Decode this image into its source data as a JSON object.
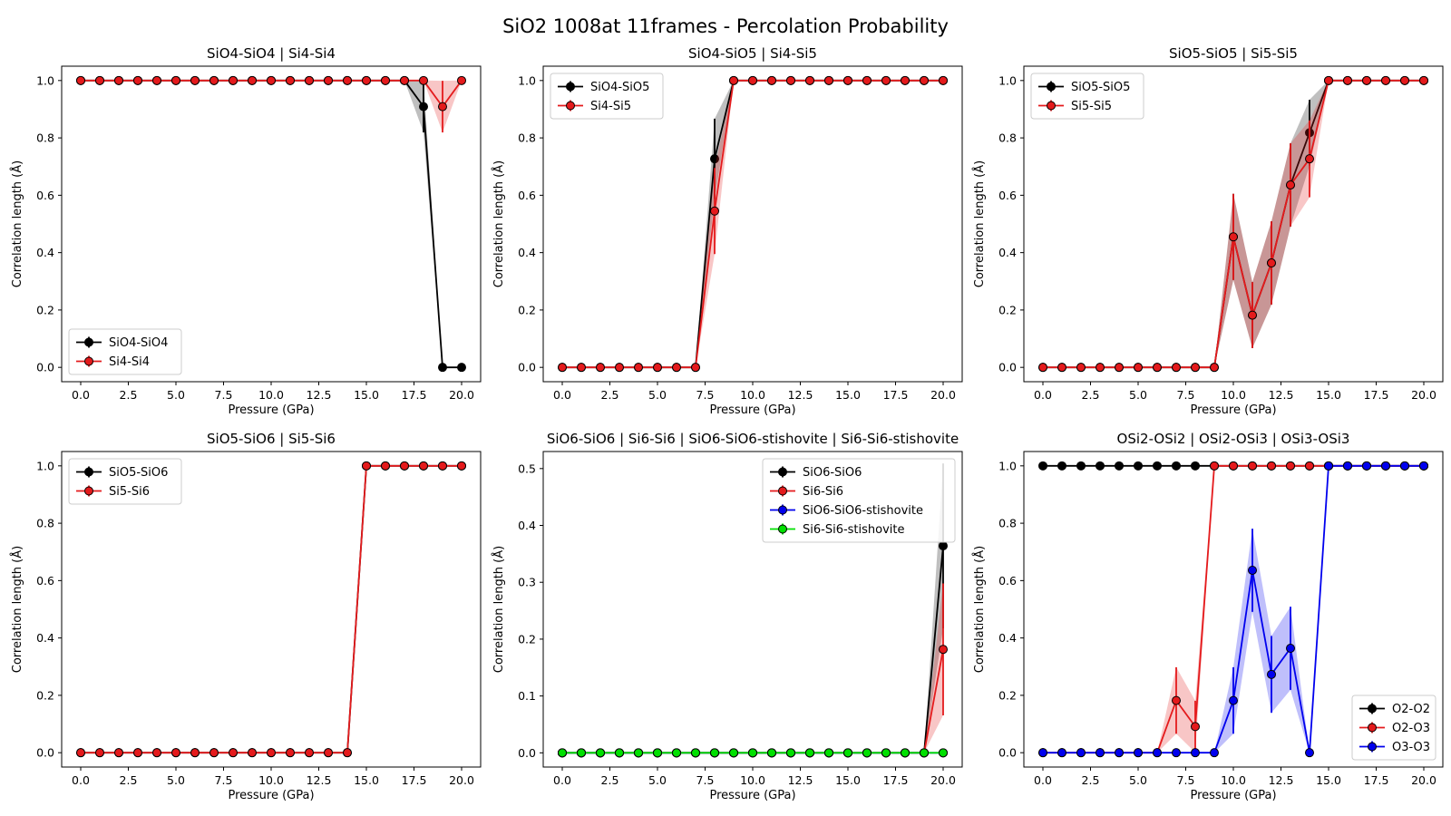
{
  "figure": {
    "title": "SiO2 1008at 11frames - Percolation Probability"
  },
  "colors": {
    "black": "#000000",
    "red": "#e41a1c",
    "blue": "#0000ee",
    "green": "#00e000"
  },
  "chart_data": [
    {
      "type": "line",
      "title": "SiO4-SiO4 | Si4-Si4",
      "xlabel": "Pressure (GPa)",
      "ylabel": "Correlation length (Å)",
      "xlim": [
        -1,
        21
      ],
      "ylim": [
        -0.05,
        1.05
      ],
      "xticks": [
        "0.0",
        "2.5",
        "5.0",
        "7.5",
        "10.0",
        "12.5",
        "15.0",
        "17.5",
        "20.0"
      ],
      "yticks": [
        "0.0",
        "0.2",
        "0.4",
        "0.6",
        "0.8",
        "1.0"
      ],
      "legend": "lower-left",
      "x": [
        0,
        1,
        2,
        3,
        4,
        5,
        6,
        7,
        8,
        9,
        10,
        11,
        12,
        13,
        14,
        15,
        16,
        17,
        18,
        19,
        20
      ],
      "series": [
        {
          "name": "SiO4-SiO4",
          "color": "black",
          "values": [
            1,
            1,
            1,
            1,
            1,
            1,
            1,
            1,
            1,
            1,
            1,
            1,
            1,
            1,
            1,
            1,
            1,
            1,
            0.909,
            0,
            0
          ],
          "err": [
            0,
            0,
            0,
            0,
            0,
            0,
            0,
            0,
            0,
            0,
            0,
            0,
            0,
            0,
            0,
            0,
            0,
            0,
            0.09,
            0,
            0
          ]
        },
        {
          "name": "Si4-Si4",
          "color": "red",
          "values": [
            1,
            1,
            1,
            1,
            1,
            1,
            1,
            1,
            1,
            1,
            1,
            1,
            1,
            1,
            1,
            1,
            1,
            1,
            1,
            0.909,
            1
          ],
          "err": [
            0,
            0,
            0,
            0,
            0,
            0,
            0,
            0,
            0,
            0,
            0,
            0,
            0,
            0,
            0,
            0,
            0,
            0,
            0,
            0.09,
            0
          ]
        }
      ]
    },
    {
      "type": "line",
      "title": "SiO4-SiO5 | Si4-Si5",
      "xlabel": "Pressure (GPa)",
      "ylabel": "Correlation length (Å)",
      "xlim": [
        -1,
        21
      ],
      "ylim": [
        -0.05,
        1.05
      ],
      "xticks": [
        "0.0",
        "2.5",
        "5.0",
        "7.5",
        "10.0",
        "12.5",
        "15.0",
        "17.5",
        "20.0"
      ],
      "yticks": [
        "0.0",
        "0.2",
        "0.4",
        "0.6",
        "0.8",
        "1.0"
      ],
      "legend": "upper-left",
      "x": [
        0,
        1,
        2,
        3,
        4,
        5,
        6,
        7,
        8,
        9,
        10,
        11,
        12,
        13,
        14,
        15,
        16,
        17,
        18,
        19,
        20
      ],
      "series": [
        {
          "name": "SiO4-SiO5",
          "color": "black",
          "values": [
            0,
            0,
            0,
            0,
            0,
            0,
            0,
            0,
            0.727,
            1,
            1,
            1,
            1,
            1,
            1,
            1,
            1,
            1,
            1,
            1,
            1
          ],
          "err": [
            0,
            0,
            0,
            0,
            0,
            0,
            0,
            0,
            0.14,
            0,
            0,
            0,
            0,
            0,
            0,
            0,
            0,
            0,
            0,
            0,
            0
          ]
        },
        {
          "name": "Si4-Si5",
          "color": "red",
          "values": [
            0,
            0,
            0,
            0,
            0,
            0,
            0,
            0,
            0.545,
            1,
            1,
            1,
            1,
            1,
            1,
            1,
            1,
            1,
            1,
            1,
            1
          ],
          "err": [
            0,
            0,
            0,
            0,
            0,
            0,
            0,
            0,
            0.15,
            0,
            0,
            0,
            0,
            0,
            0,
            0,
            0,
            0,
            0,
            0,
            0
          ]
        }
      ]
    },
    {
      "type": "line",
      "title": "SiO5-SiO5 | Si5-Si5",
      "xlabel": "Pressure (GPa)",
      "ylabel": "Correlation length (Å)",
      "xlim": [
        -1,
        21
      ],
      "ylim": [
        -0.05,
        1.05
      ],
      "xticks": [
        "0.0",
        "2.5",
        "5.0",
        "7.5",
        "10.0",
        "12.5",
        "15.0",
        "17.5",
        "20.0"
      ],
      "yticks": [
        "0.0",
        "0.2",
        "0.4",
        "0.6",
        "0.8",
        "1.0"
      ],
      "legend": "upper-left",
      "x": [
        0,
        1,
        2,
        3,
        4,
        5,
        6,
        7,
        8,
        9,
        10,
        11,
        12,
        13,
        14,
        15,
        16,
        17,
        18,
        19,
        20
      ],
      "series": [
        {
          "name": "SiO5-SiO5",
          "color": "black",
          "values": [
            0,
            0,
            0,
            0,
            0,
            0,
            0,
            0,
            0,
            0,
            0.455,
            0.182,
            0.364,
            0.636,
            0.818,
            1,
            1,
            1,
            1,
            1,
            1
          ],
          "err": [
            0,
            0,
            0,
            0,
            0,
            0,
            0,
            0,
            0,
            0,
            0.15,
            0.115,
            0.145,
            0.145,
            0.115,
            0,
            0,
            0,
            0,
            0,
            0
          ]
        },
        {
          "name": "Si5-Si5",
          "color": "red",
          "values": [
            0,
            0,
            0,
            0,
            0,
            0,
            0,
            0,
            0,
            0,
            0.455,
            0.182,
            0.364,
            0.636,
            0.727,
            1,
            1,
            1,
            1,
            1,
            1
          ],
          "err": [
            0,
            0,
            0,
            0,
            0,
            0,
            0,
            0,
            0,
            0,
            0.15,
            0.115,
            0.145,
            0.145,
            0.134,
            0,
            0,
            0,
            0,
            0,
            0
          ]
        }
      ]
    },
    {
      "type": "line",
      "title": "SiO5-SiO6 | Si5-Si6",
      "xlabel": "Pressure (GPa)",
      "ylabel": "Correlation length (Å)",
      "xlim": [
        -1,
        21
      ],
      "ylim": [
        -0.05,
        1.05
      ],
      "xticks": [
        "0.0",
        "2.5",
        "5.0",
        "7.5",
        "10.0",
        "12.5",
        "15.0",
        "17.5",
        "20.0"
      ],
      "yticks": [
        "0.0",
        "0.2",
        "0.4",
        "0.6",
        "0.8",
        "1.0"
      ],
      "legend": "upper-left",
      "x": [
        0,
        1,
        2,
        3,
        4,
        5,
        6,
        7,
        8,
        9,
        10,
        11,
        12,
        13,
        14,
        15,
        16,
        17,
        18,
        19,
        20
      ],
      "series": [
        {
          "name": "SiO5-SiO6",
          "color": "black",
          "values": [
            0,
            0,
            0,
            0,
            0,
            0,
            0,
            0,
            0,
            0,
            0,
            0,
            0,
            0,
            0,
            1,
            1,
            1,
            1,
            1,
            1
          ],
          "err": [
            0,
            0,
            0,
            0,
            0,
            0,
            0,
            0,
            0,
            0,
            0,
            0,
            0,
            0,
            0,
            0,
            0,
            0,
            0,
            0,
            0
          ]
        },
        {
          "name": "Si5-Si6",
          "color": "red",
          "values": [
            0,
            0,
            0,
            0,
            0,
            0,
            0,
            0,
            0,
            0,
            0,
            0,
            0,
            0,
            0,
            1,
            1,
            1,
            1,
            1,
            1
          ],
          "err": [
            0,
            0,
            0,
            0,
            0,
            0,
            0,
            0,
            0,
            0,
            0,
            0,
            0,
            0,
            0,
            0,
            0,
            0,
            0,
            0,
            0
          ]
        }
      ]
    },
    {
      "type": "line",
      "title": "SiO6-SiO6 | Si6-Si6 | SiO6-SiO6-stishovite | Si6-Si6-stishovite",
      "xlabel": "Pressure (GPa)",
      "ylabel": "Correlation length (Å)",
      "xlim": [
        -1,
        21
      ],
      "ylim": [
        -0.025,
        0.53
      ],
      "xticks": [
        "0.0",
        "2.5",
        "5.0",
        "7.5",
        "10.0",
        "12.5",
        "15.0",
        "17.5",
        "20.0"
      ],
      "yticks": [
        "0.0",
        "0.1",
        "0.2",
        "0.3",
        "0.4",
        "0.5"
      ],
      "legend": "upper-right",
      "x": [
        0,
        1,
        2,
        3,
        4,
        5,
        6,
        7,
        8,
        9,
        10,
        11,
        12,
        13,
        14,
        15,
        16,
        17,
        18,
        19,
        20
      ],
      "series": [
        {
          "name": "SiO6-SiO6",
          "color": "black",
          "values": [
            0,
            0,
            0,
            0,
            0,
            0,
            0,
            0,
            0,
            0,
            0,
            0,
            0,
            0,
            0,
            0,
            0,
            0,
            0,
            0,
            0.364
          ],
          "err": [
            0,
            0,
            0,
            0,
            0,
            0,
            0,
            0,
            0,
            0,
            0,
            0,
            0,
            0,
            0,
            0,
            0,
            0,
            0,
            0,
            0.145
          ]
        },
        {
          "name": "Si6-Si6",
          "color": "red",
          "values": [
            0,
            0,
            0,
            0,
            0,
            0,
            0,
            0,
            0,
            0,
            0,
            0,
            0,
            0,
            0,
            0,
            0,
            0,
            0,
            0,
            0.182
          ],
          "err": [
            0,
            0,
            0,
            0,
            0,
            0,
            0,
            0,
            0,
            0,
            0,
            0,
            0,
            0,
            0,
            0,
            0,
            0,
            0,
            0,
            0.116
          ]
        },
        {
          "name": "SiO6-SiO6-stishovite",
          "color": "blue",
          "values": [
            0,
            0,
            0,
            0,
            0,
            0,
            0,
            0,
            0,
            0,
            0,
            0,
            0,
            0,
            0,
            0,
            0,
            0,
            0,
            0,
            0
          ],
          "err": [
            0,
            0,
            0,
            0,
            0,
            0,
            0,
            0,
            0,
            0,
            0,
            0,
            0,
            0,
            0,
            0,
            0,
            0,
            0,
            0,
            0
          ]
        },
        {
          "name": "Si6-Si6-stishovite",
          "color": "green",
          "values": [
            0,
            0,
            0,
            0,
            0,
            0,
            0,
            0,
            0,
            0,
            0,
            0,
            0,
            0,
            0,
            0,
            0,
            0,
            0,
            0,
            0
          ],
          "err": [
            0,
            0,
            0,
            0,
            0,
            0,
            0,
            0,
            0,
            0,
            0,
            0,
            0,
            0,
            0,
            0,
            0,
            0,
            0,
            0,
            0
          ]
        }
      ]
    },
    {
      "type": "line",
      "title": "OSi2-OSi2 | OSi2-OSi3 | OSi3-OSi3",
      "xlabel": "Pressure (GPa)",
      "ylabel": "Correlation length (Å)",
      "xlim": [
        -1,
        21
      ],
      "ylim": [
        -0.05,
        1.05
      ],
      "xticks": [
        "0.0",
        "2.5",
        "5.0",
        "7.5",
        "10.0",
        "12.5",
        "15.0",
        "17.5",
        "20.0"
      ],
      "yticks": [
        "0.0",
        "0.2",
        "0.4",
        "0.6",
        "0.8",
        "1.0"
      ],
      "legend": "lower-right",
      "x": [
        0,
        1,
        2,
        3,
        4,
        5,
        6,
        7,
        8,
        9,
        10,
        11,
        12,
        13,
        14,
        15,
        16,
        17,
        18,
        19,
        20
      ],
      "series": [
        {
          "name": "O2-O2",
          "color": "black",
          "values": [
            1,
            1,
            1,
            1,
            1,
            1,
            1,
            1,
            1,
            1,
            1,
            1,
            1,
            1,
            1,
            1,
            1,
            1,
            1,
            1,
            1
          ],
          "err": [
            0,
            0,
            0,
            0,
            0,
            0,
            0,
            0,
            0,
            0,
            0,
            0,
            0,
            0,
            0,
            0,
            0,
            0,
            0,
            0,
            0
          ]
        },
        {
          "name": "O2-O3",
          "color": "red",
          "values": [
            0,
            0,
            0,
            0,
            0,
            0,
            0,
            0.182,
            0.091,
            1,
            1,
            1,
            1,
            1,
            1,
            1,
            1,
            1,
            1,
            1,
            1
          ],
          "err": [
            0,
            0,
            0,
            0,
            0,
            0,
            0,
            0.116,
            0.09,
            0,
            0,
            0,
            0,
            0,
            0,
            0,
            0,
            0,
            0,
            0,
            0
          ]
        },
        {
          "name": "O3-O3",
          "color": "blue",
          "values": [
            0,
            0,
            0,
            0,
            0,
            0,
            0,
            0,
            0,
            0,
            0.182,
            0.636,
            0.273,
            0.364,
            0,
            1,
            1,
            1,
            1,
            1,
            1
          ],
          "err": [
            0,
            0,
            0,
            0,
            0,
            0,
            0,
            0,
            0,
            0,
            0.116,
            0.145,
            0.134,
            0.145,
            0,
            0,
            0,
            0,
            0,
            0,
            0
          ]
        }
      ]
    }
  ]
}
